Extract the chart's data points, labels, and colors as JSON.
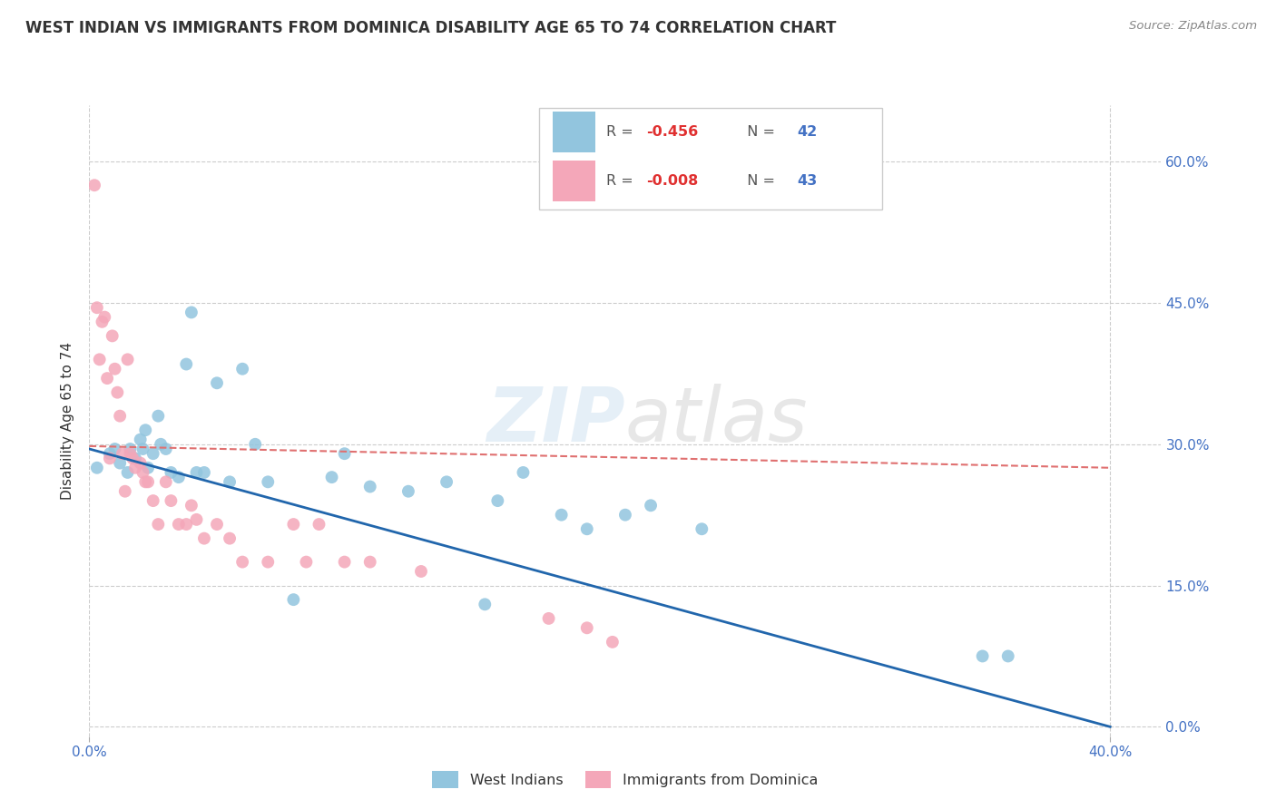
{
  "title": "WEST INDIAN VS IMMIGRANTS FROM DOMINICA DISABILITY AGE 65 TO 74 CORRELATION CHART",
  "source": "Source: ZipAtlas.com",
  "ylabel": "Disability Age 65 to 74",
  "R_blue": -0.456,
  "N_blue": 42,
  "R_pink": -0.008,
  "N_pink": 43,
  "blue_label": "West Indians",
  "pink_label": "Immigrants from Dominica",
  "xlim": [
    0.0,
    0.42
  ],
  "ylim": [
    -0.01,
    0.66
  ],
  "yticks": [
    0.0,
    0.15,
    0.3,
    0.45,
    0.6
  ],
  "xticks": [
    0.0,
    0.4
  ],
  "watermark_zip": "ZIP",
  "watermark_atlas": "atlas",
  "blue_color": "#92c5de",
  "pink_color": "#f4a7b9",
  "blue_line_color": "#2166ac",
  "pink_line_color": "#e07070",
  "blue_line_start_y": 0.295,
  "blue_line_end_y": 0.0,
  "pink_line_start_y": 0.298,
  "pink_line_end_y": 0.275,
  "blue_x": [
    0.003,
    0.008,
    0.01,
    0.012,
    0.015,
    0.016,
    0.018,
    0.02,
    0.021,
    0.022,
    0.023,
    0.025,
    0.027,
    0.028,
    0.03,
    0.032,
    0.035,
    0.038,
    0.04,
    0.042,
    0.045,
    0.05,
    0.055,
    0.06,
    0.065,
    0.07,
    0.08,
    0.095,
    0.1,
    0.11,
    0.125,
    0.14,
    0.155,
    0.16,
    0.17,
    0.185,
    0.195,
    0.21,
    0.22,
    0.24,
    0.35,
    0.36
  ],
  "blue_y": [
    0.275,
    0.29,
    0.295,
    0.28,
    0.27,
    0.295,
    0.285,
    0.305,
    0.295,
    0.315,
    0.275,
    0.29,
    0.33,
    0.3,
    0.295,
    0.27,
    0.265,
    0.385,
    0.44,
    0.27,
    0.27,
    0.365,
    0.26,
    0.38,
    0.3,
    0.26,
    0.135,
    0.265,
    0.29,
    0.255,
    0.25,
    0.26,
    0.13,
    0.24,
    0.27,
    0.225,
    0.21,
    0.225,
    0.235,
    0.21,
    0.075,
    0.075
  ],
  "pink_x": [
    0.002,
    0.003,
    0.004,
    0.005,
    0.006,
    0.007,
    0.008,
    0.009,
    0.01,
    0.011,
    0.012,
    0.013,
    0.014,
    0.015,
    0.016,
    0.017,
    0.018,
    0.02,
    0.021,
    0.022,
    0.023,
    0.025,
    0.027,
    0.03,
    0.032,
    0.035,
    0.038,
    0.04,
    0.042,
    0.045,
    0.05,
    0.055,
    0.06,
    0.07,
    0.08,
    0.085,
    0.09,
    0.1,
    0.11,
    0.13,
    0.18,
    0.195,
    0.205
  ],
  "pink_y": [
    0.575,
    0.445,
    0.39,
    0.43,
    0.435,
    0.37,
    0.285,
    0.415,
    0.38,
    0.355,
    0.33,
    0.29,
    0.25,
    0.39,
    0.29,
    0.285,
    0.275,
    0.28,
    0.27,
    0.26,
    0.26,
    0.24,
    0.215,
    0.26,
    0.24,
    0.215,
    0.215,
    0.235,
    0.22,
    0.2,
    0.215,
    0.2,
    0.175,
    0.175,
    0.215,
    0.175,
    0.215,
    0.175,
    0.175,
    0.165,
    0.115,
    0.105,
    0.09
  ]
}
